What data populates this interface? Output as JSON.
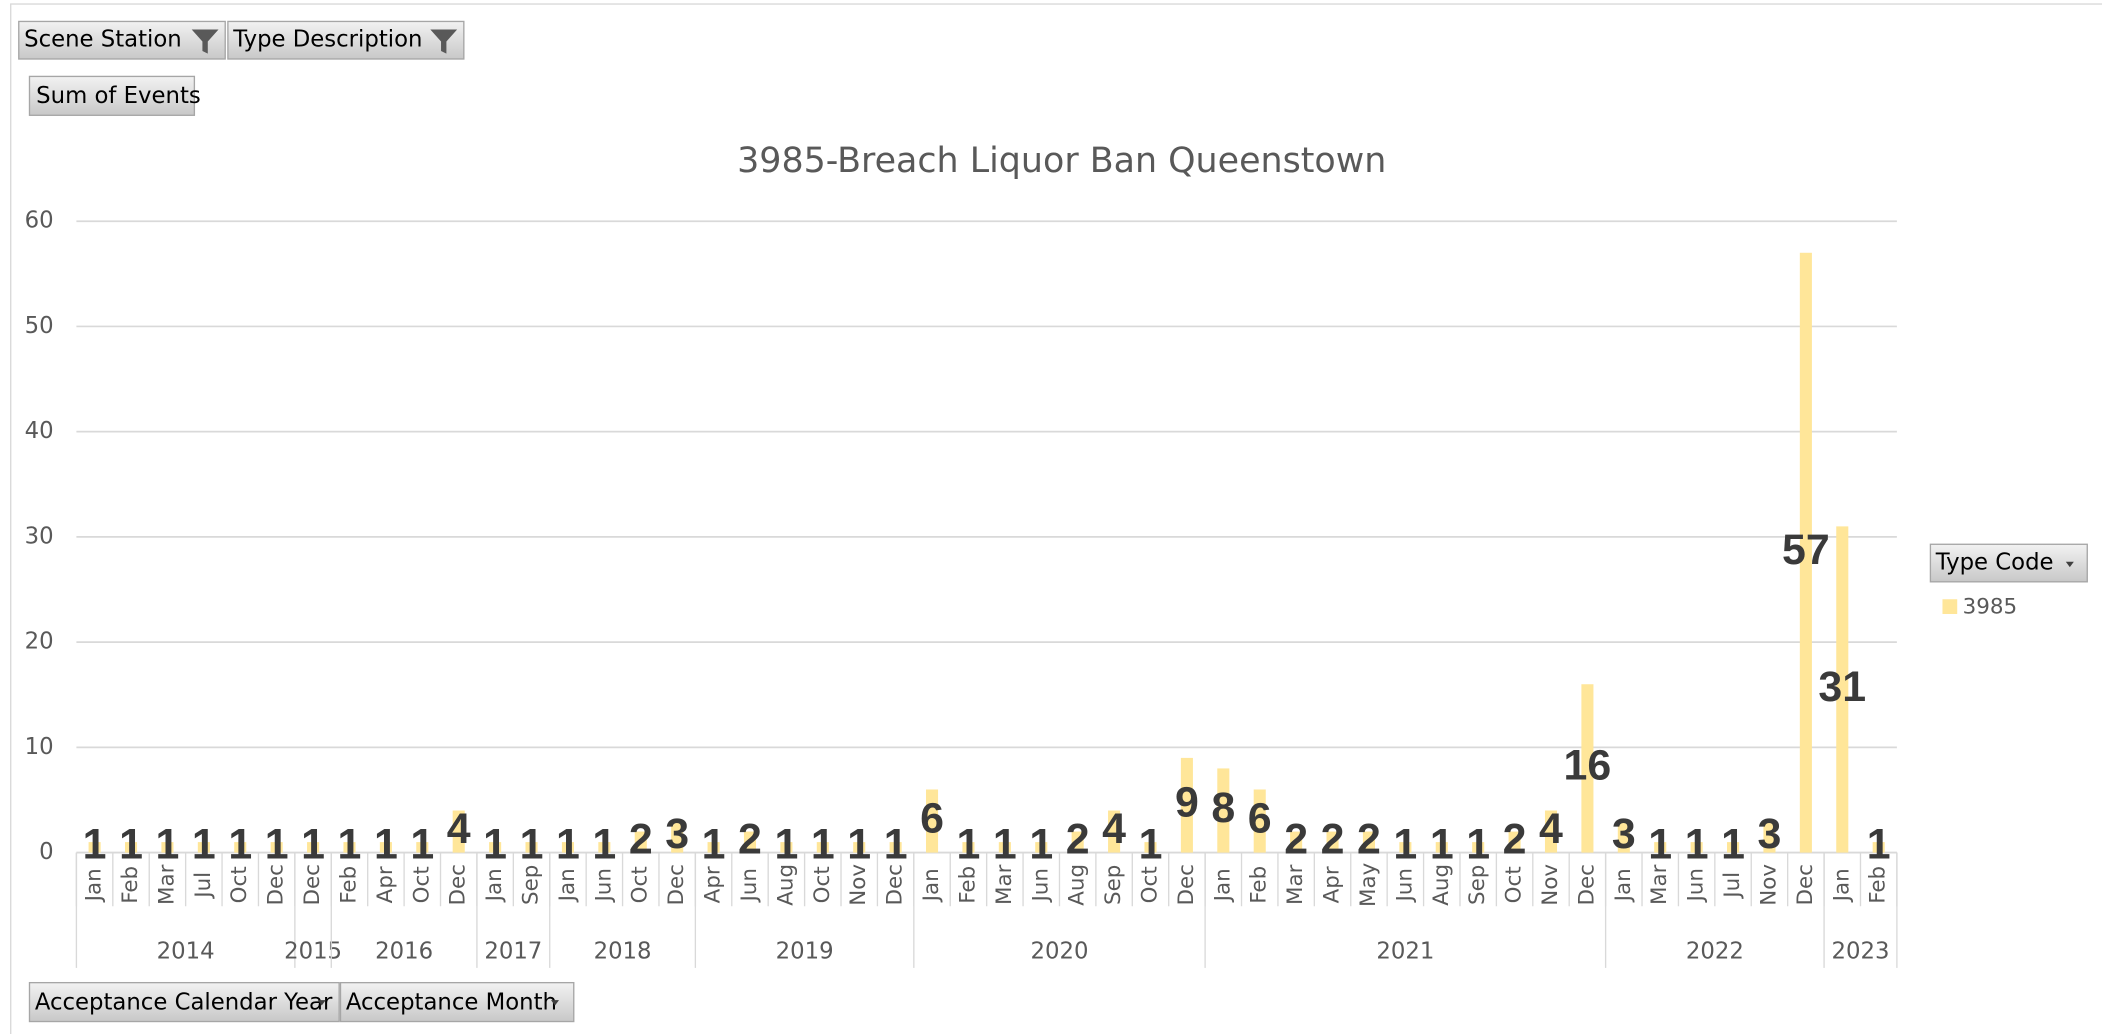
{
  "filters": [
    "Scene Station",
    "Type Description"
  ],
  "value_field": "Sum of Events",
  "row_fields": [
    "Acceptance Calendar Year",
    "Acceptance Month"
  ],
  "legend_field": "Type Code",
  "chart_data": {
    "type": "bar",
    "title": "3985-Breach Liquor Ban Queenstown",
    "categories": [
      "Jan",
      "Feb",
      "Mar",
      "Jul",
      "Oct",
      "Dec",
      "Dec",
      "Feb",
      "Apr",
      "Oct",
      "Dec",
      "Jan",
      "Sep",
      "Jan",
      "Jun",
      "Oct",
      "Dec",
      "Apr",
      "Jun",
      "Aug",
      "Oct",
      "Nov",
      "Dec",
      "Jan",
      "Feb",
      "Mar",
      "Jun",
      "Aug",
      "Sep",
      "Oct",
      "Dec",
      "Jan",
      "Feb",
      "Mar",
      "Apr",
      "May",
      "Jun",
      "Aug",
      "Sep",
      "Oct",
      "Nov",
      "Dec",
      "Jan",
      "Mar",
      "Jun",
      "Jul",
      "Nov",
      "Dec",
      "Jan",
      "Feb"
    ],
    "groups": [
      {
        "label": "2014",
        "count": 6
      },
      {
        "label": "2015",
        "count": 1
      },
      {
        "label": "2016",
        "count": 4
      },
      {
        "label": "2017",
        "count": 2
      },
      {
        "label": "2018",
        "count": 4
      },
      {
        "label": "2019",
        "count": 6
      },
      {
        "label": "2020",
        "count": 8
      },
      {
        "label": "2021",
        "count": 11
      },
      {
        "label": "2022",
        "count": 6
      },
      {
        "label": "2023",
        "count": 2
      }
    ],
    "series": [
      {
        "name": "3985",
        "color": "#ffe699",
        "values": [
          1,
          1,
          1,
          1,
          1,
          1,
          1,
          1,
          1,
          1,
          4,
          1,
          1,
          1,
          1,
          2,
          3,
          1,
          2,
          1,
          1,
          1,
          1,
          6,
          1,
          1,
          1,
          2,
          4,
          1,
          9,
          8,
          6,
          2,
          2,
          2,
          1,
          1,
          1,
          2,
          4,
          16,
          3,
          1,
          1,
          1,
          3,
          57,
          31,
          1
        ]
      }
    ],
    "ylim": [
      0,
      60
    ],
    "yticks": [
      0,
      10,
      20,
      30,
      40,
      50,
      60
    ],
    "grid": true,
    "legend": "right"
  }
}
